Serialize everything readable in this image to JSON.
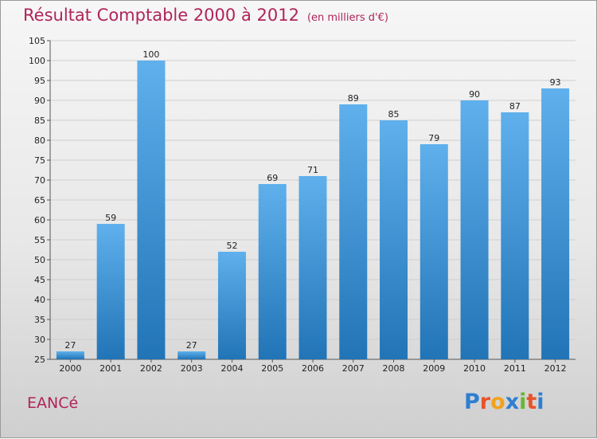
{
  "chart_data": {
    "type": "bar",
    "title": "Résultat Comptable 2000 à 2012",
    "subtitle": "(en milliers d'€)",
    "categories": [
      "2000",
      "2001",
      "2002",
      "2003",
      "2004",
      "2005",
      "2006",
      "2007",
      "2008",
      "2009",
      "2010",
      "2011",
      "2012"
    ],
    "values": [
      27,
      59,
      100,
      27,
      52,
      69,
      71,
      89,
      85,
      79,
      90,
      87,
      93
    ],
    "ylim": [
      25,
      105
    ],
    "yticks": [
      25,
      30,
      35,
      40,
      45,
      50,
      55,
      60,
      65,
      70,
      75,
      80,
      85,
      90,
      95,
      100,
      105
    ],
    "xlabel": "",
    "ylabel": "",
    "grid": true,
    "colors": {
      "bar_top": "#5fb0ec",
      "bar_bottom": "#2174b6",
      "title": "#b0245a"
    }
  },
  "footer": {
    "commune": "EANCé",
    "logo_letters": [
      {
        "ch": "P",
        "color": "#2e7fd1"
      },
      {
        "ch": "r",
        "color": "#e8532a"
      },
      {
        "ch": "o",
        "color": "#f2a21c"
      },
      {
        "ch": "x",
        "color": "#2e7fd1"
      },
      {
        "ch": "i",
        "color": "#6ab534"
      },
      {
        "ch": "t",
        "color": "#e8532a"
      },
      {
        "ch": "i",
        "color": "#2e7fd1"
      }
    ]
  }
}
